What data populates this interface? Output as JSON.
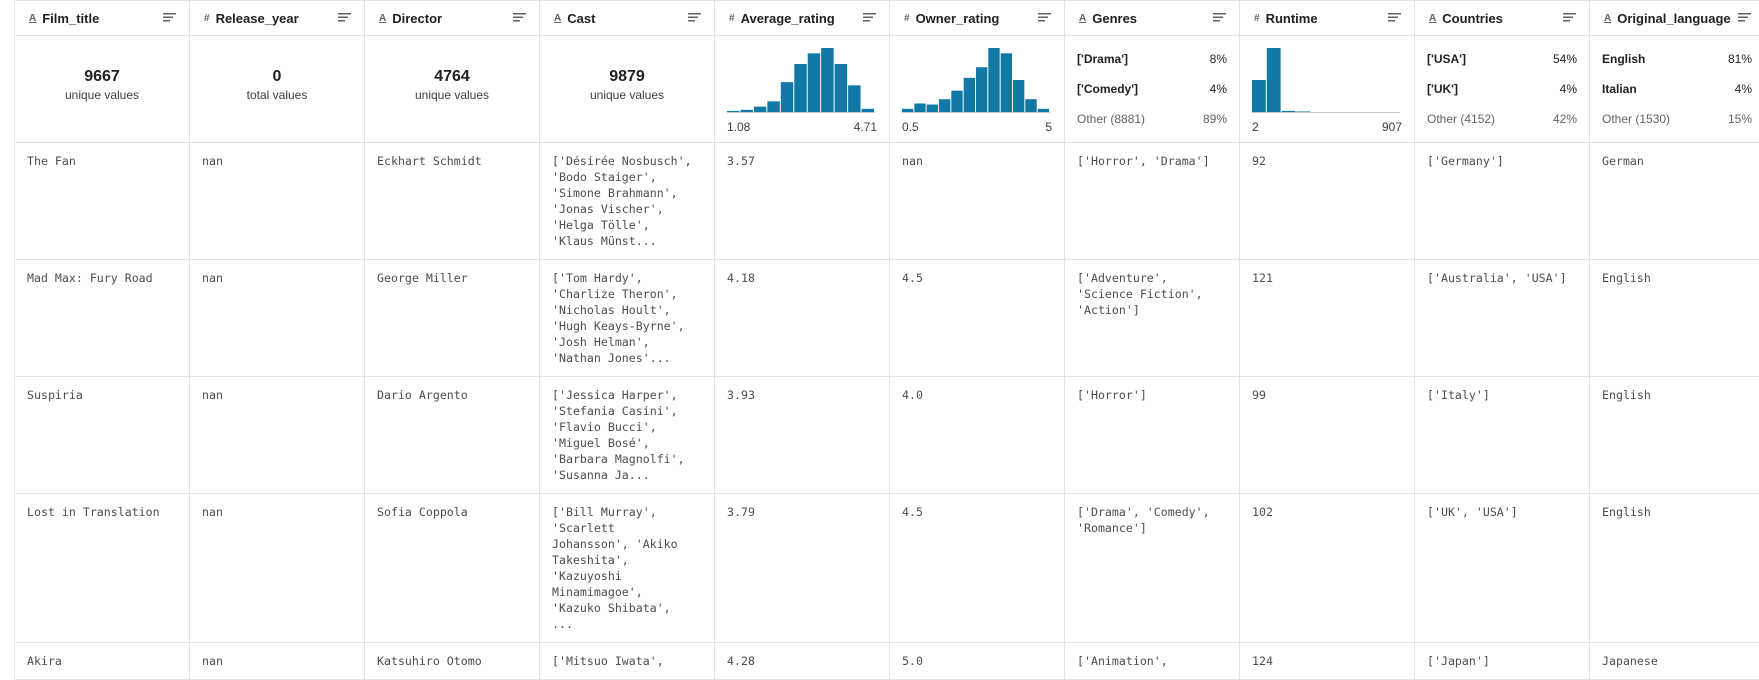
{
  "columns": [
    {
      "icon": "A",
      "name": "Film_title",
      "summary": {
        "count": "9667",
        "caption": "unique values"
      }
    },
    {
      "icon": "#",
      "name": "Release_year",
      "summary": {
        "count": "0",
        "caption": "total values"
      }
    },
    {
      "icon": "A",
      "name": "Director",
      "summary": {
        "count": "4764",
        "caption": "unique values"
      }
    },
    {
      "icon": "A",
      "name": "Cast",
      "summary": {
        "count": "9879",
        "caption": "unique values"
      }
    },
    {
      "icon": "#",
      "name": "Average_rating",
      "summary": {
        "histogram": [
          1,
          2,
          5,
          10,
          28,
          45,
          55,
          60,
          45,
          25,
          3
        ],
        "min": "1.08",
        "max": "4.71"
      }
    },
    {
      "icon": "#",
      "name": "Owner_rating",
      "summary": {
        "histogram": [
          3,
          8,
          7,
          12,
          20,
          32,
          42,
          60,
          55,
          30,
          12,
          3
        ],
        "min": "0.5",
        "max": "5"
      }
    },
    {
      "icon": "A",
      "name": "Genres",
      "summary": {
        "top": [
          [
            "['Drama']",
            "8%"
          ],
          [
            "['Comedy']",
            "4%"
          ],
          [
            "Other (8881)",
            "89%"
          ]
        ]
      }
    },
    {
      "icon": "#",
      "name": "Runtime",
      "summary": {
        "histogram": [
          30,
          60,
          1,
          0.5,
          0,
          0,
          0,
          0,
          0,
          0
        ],
        "min": "2",
        "max": "907"
      }
    },
    {
      "icon": "A",
      "name": "Countries",
      "summary": {
        "top": [
          [
            "['USA']",
            "54%"
          ],
          [
            "['UK']",
            "4%"
          ],
          [
            "Other (4152)",
            "42%"
          ]
        ]
      }
    },
    {
      "icon": "A",
      "name": "Original_language",
      "summary": {
        "top": [
          [
            "English",
            "81%"
          ],
          [
            "Italian",
            "4%"
          ],
          [
            "Other (1530)",
            "15%"
          ]
        ]
      }
    }
  ],
  "rows": [
    [
      "The Fan",
      "nan",
      "Eckhart Schmidt",
      "['Désirée Nosbusch', 'Bodo Staiger', 'Simone Brahmann', 'Jonas Vischer', 'Helga Tölle', 'Klaus Münst...",
      "3.57",
      "nan",
      "['Horror', 'Drama']",
      "92",
      "['Germany']",
      "German"
    ],
    [
      "Mad Max: Fury Road",
      "nan",
      "George Miller",
      "['Tom Hardy', 'Charlize Theron', 'Nicholas Hoult', 'Hugh Keays-Byrne', 'Josh Helman', 'Nathan Jones'...",
      "4.18",
      "4.5",
      "['Adventure', 'Science Fiction', 'Action']",
      "121",
      "['Australia', 'USA']",
      "English"
    ],
    [
      "Suspiria",
      "nan",
      "Dario Argento",
      "['Jessica Harper', 'Stefania Casini', 'Flavio Bucci', 'Miguel Bosé', 'Barbara Magnolfi', 'Susanna Ja...",
      "3.93",
      "4.0",
      "['Horror']",
      "99",
      "['Italy']",
      "English"
    ],
    [
      "Lost in Translation",
      "nan",
      "Sofia Coppola",
      "['Bill Murray', 'Scarlett Johansson', 'Akiko Takeshita', 'Kazuyoshi Minamimagoe', 'Kazuko Shibata', ...",
      "3.79",
      "4.5",
      "['Drama', 'Comedy', 'Romance']",
      "102",
      "['UK', 'USA']",
      "English"
    ],
    [
      "Akira",
      "nan",
      "Katsuhiro Otomo",
      "['Mitsuo Iwata',",
      "4.28",
      "5.0",
      "['Animation',",
      "124",
      "['Japan']",
      "Japanese"
    ]
  ]
}
